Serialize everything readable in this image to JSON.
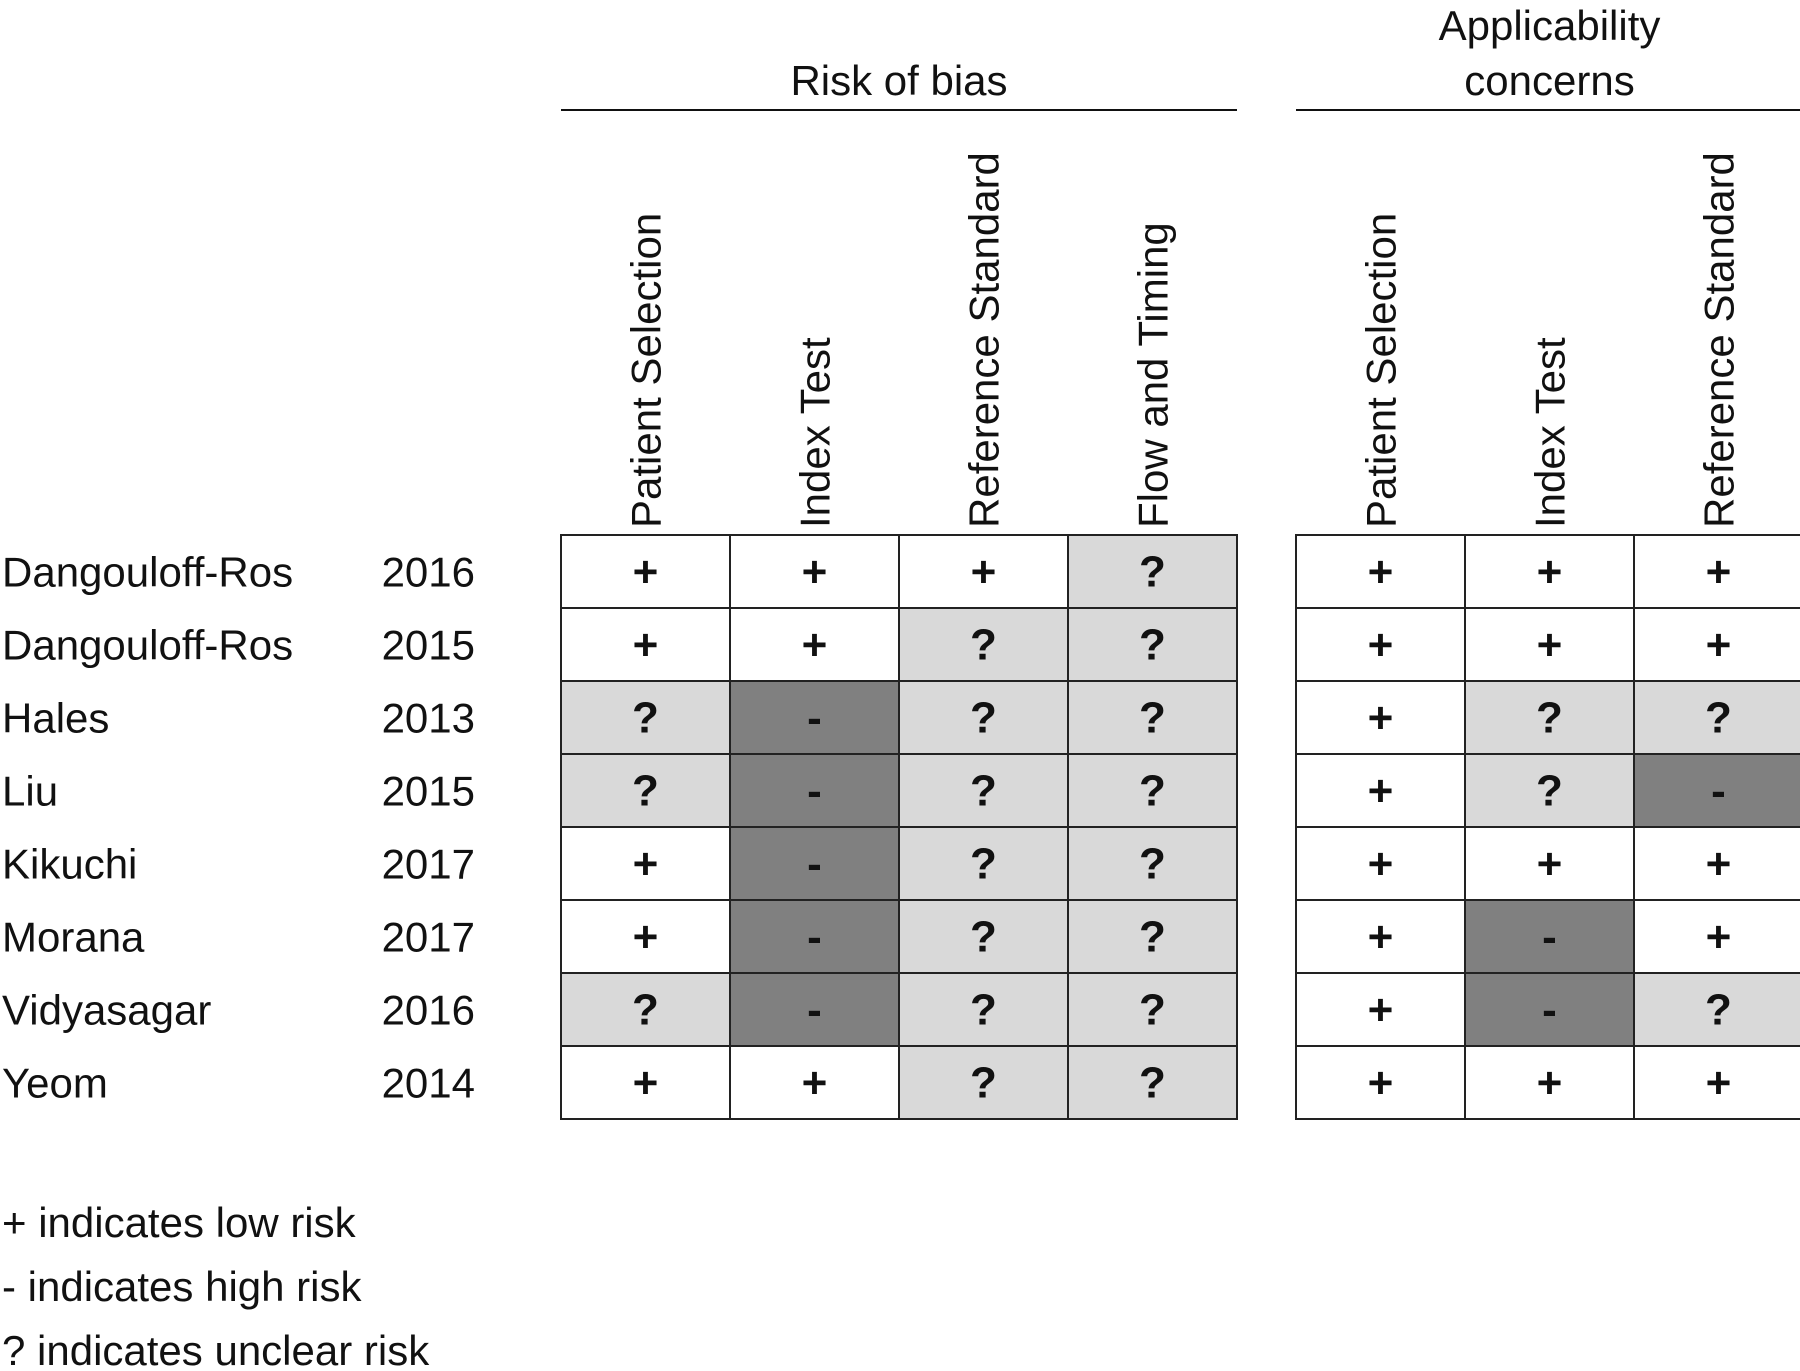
{
  "chart_data": {
    "type": "table",
    "groups": [
      {
        "title_lines": [
          "Risk of bias"
        ],
        "columns": [
          "Patient Selection",
          "Index Test",
          "Reference Standard",
          "Flow and Timing"
        ]
      },
      {
        "title_lines": [
          "Applicability",
          "concerns"
        ],
        "columns": [
          "Patient Selection",
          "Index Test",
          "Reference Standard"
        ]
      }
    ],
    "studies": [
      {
        "author": "Dangouloff-Ros",
        "year": "2016",
        "bias": [
          "+",
          "+",
          "+",
          "?"
        ],
        "applicability": [
          "+",
          "+",
          "+"
        ]
      },
      {
        "author": "Dangouloff-Ros",
        "year": "2015",
        "bias": [
          "+",
          "+",
          "?",
          "?"
        ],
        "applicability": [
          "+",
          "+",
          "+"
        ]
      },
      {
        "author": "Hales",
        "year": "2013",
        "bias": [
          "?",
          "-",
          "?",
          "?"
        ],
        "applicability": [
          "+",
          "?",
          "?"
        ]
      },
      {
        "author": "Liu",
        "year": "2015",
        "bias": [
          "?",
          "-",
          "?",
          "?"
        ],
        "applicability": [
          "+",
          "?",
          "-"
        ]
      },
      {
        "author": "Kikuchi",
        "year": "2017",
        "bias": [
          "+",
          "-",
          "?",
          "?"
        ],
        "applicability": [
          "+",
          "+",
          "+"
        ]
      },
      {
        "author": "Morana",
        "year": "2017",
        "bias": [
          "+",
          "-",
          "?",
          "?"
        ],
        "applicability": [
          "+",
          "-",
          "+"
        ]
      },
      {
        "author": "Vidyasagar",
        "year": "2016",
        "bias": [
          "?",
          "-",
          "?",
          "?"
        ],
        "applicability": [
          "+",
          "-",
          "?"
        ]
      },
      {
        "author": "Yeom",
        "year": "2014",
        "bias": [
          "+",
          "+",
          "?",
          "?"
        ],
        "applicability": [
          "+",
          "+",
          "+"
        ]
      }
    ],
    "cell_colors": {
      "+": "#ffffff",
      "?": "#d9d9d9",
      "-": "#808080"
    },
    "legend": [
      "+ indicates low risk",
      "- indicates high risk",
      "? indicates unclear risk"
    ]
  }
}
